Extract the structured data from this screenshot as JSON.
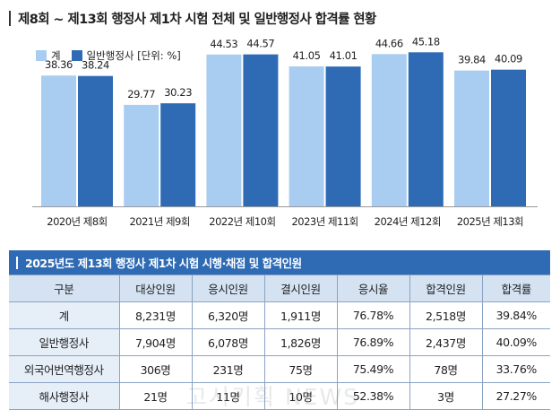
{
  "page_title": "제8회 ~ 제13회 행정사 제1차 시험 전체 및 일반행정사 합격률 현황",
  "colors": {
    "series_total": "#a9cdf0",
    "series_general": "#2e6bb4",
    "table_header_bg": "#2e6bb4",
    "table_col_head_bg": "#d4e2f2",
    "table_row_head_bg": "#e6eef8"
  },
  "chart_data": {
    "type": "bar",
    "categories": [
      "2020년 제8회",
      "2021년 제9회",
      "2022년 제10회",
      "2023년 제11회",
      "2024년 제12회",
      "2025년 제13회"
    ],
    "series": [
      {
        "name": "계",
        "values": [
          38.36,
          29.77,
          44.53,
          41.05,
          44.66,
          39.84
        ]
      },
      {
        "name": "일반행정사 [단위: %]",
        "values": [
          38.24,
          30.23,
          44.57,
          41.01,
          45.18,
          40.09
        ]
      }
    ],
    "value_labels": [
      [
        "38.36",
        "29.77",
        "44.53",
        "41.05",
        "44.66",
        "39.84"
      ],
      [
        "38.24",
        "30.23",
        "44.57",
        "41.01",
        "45.18",
        "40.09"
      ]
    ],
    "ylim": [
      0,
      50
    ],
    "grid": false,
    "legend_position": "top-left"
  },
  "table": {
    "title": "2025년도 제13회 행정사 제1차 시험 시행·채점 및 합격인원",
    "columns": [
      "구분",
      "대상인원",
      "응시인원",
      "결시인원",
      "응시율",
      "합격인원",
      "합격률"
    ],
    "rows": [
      [
        "계",
        "8,231명",
        "6,320명",
        "1,911명",
        "76.78%",
        "2,518명",
        "39.84%"
      ],
      [
        "일반행정사",
        "7,904명",
        "6,078명",
        "1,826명",
        "76.89%",
        "2,437명",
        "40.09%"
      ],
      [
        "외국어번역행정사",
        "306명",
        "231명",
        "75명",
        "75.49%",
        "78명",
        "33.76%"
      ],
      [
        "해사행정사",
        "21명",
        "11명",
        "10명",
        "52.38%",
        "3명",
        "27.27%"
      ]
    ]
  },
  "watermark": "고시기획 NEWS"
}
